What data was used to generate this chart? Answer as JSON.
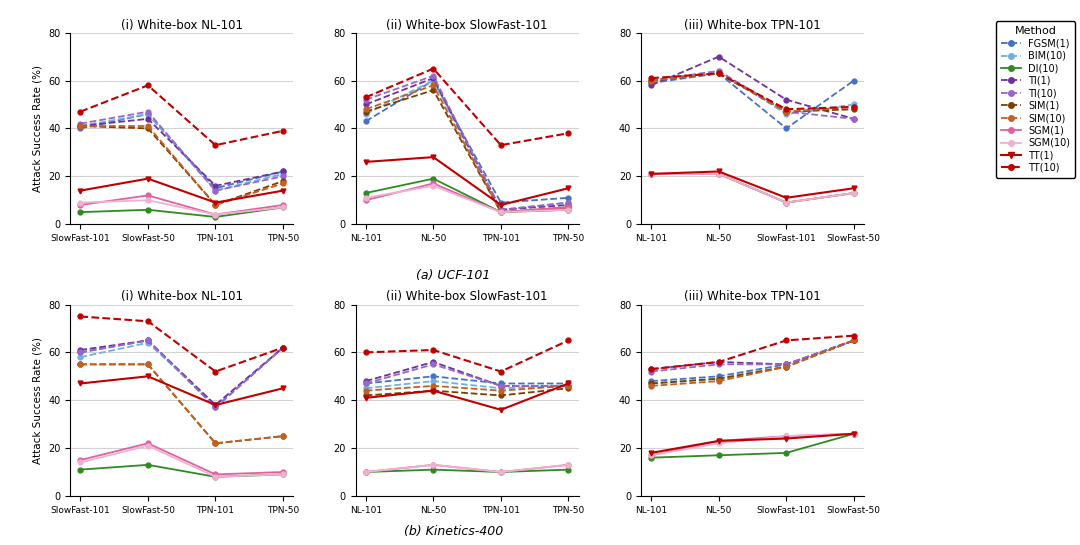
{
  "methods": [
    "FGSM(1)",
    "BIM(10)",
    "DI(10)",
    "TI(1)",
    "TI(10)",
    "SIM(1)",
    "SIM(10)",
    "SGM(1)",
    "SGM(10)",
    "TT(1)",
    "TT(10)"
  ],
  "line_styles": {
    "FGSM(1)": {
      "dash": true,
      "color": "#4472c4",
      "marker": "o"
    },
    "BIM(10)": {
      "dash": true,
      "color": "#5b9bd5",
      "marker": "o"
    },
    "DI(10)": {
      "dash": true,
      "color": "#70ad47",
      "marker": "o"
    },
    "TI(1)": {
      "dash": true,
      "color": "#7030a0",
      "marker": "o"
    },
    "TI(10)": {
      "dash": true,
      "color": "#9966cc",
      "marker": "o"
    },
    "SIM(1)": {
      "dash": true,
      "color": "#843c0c",
      "marker": "o"
    },
    "SIM(10)": {
      "dash": true,
      "color": "#c55a11",
      "marker": "o"
    },
    "SGM(1)": {
      "dash": true,
      "color": "#e060a0",
      "marker": "o"
    },
    "SGM(10)": {
      "dash": true,
      "color": "#f4a0c8",
      "marker": "o"
    },
    "TT(1)": {
      "dash": false,
      "color": "#c00000",
      "marker": "v"
    },
    "TT(10)": {
      "dash": true,
      "color": "#c00000",
      "marker": "o"
    }
  },
  "solid_methods": [
    "FGSM(1)",
    "BIM(10)",
    "DI(10)",
    "SIM(1)",
    "SIM(10)",
    "SGM(1)",
    "SGM(10)",
    "TT(1)"
  ],
  "ucf101": {
    "NL101": {
      "xticks": [
        "SlowFast-101",
        "SlowFast-50",
        "TPN-101",
        "TPN-50"
      ],
      "FGSM(1)": [
        40,
        46,
        15,
        22
      ],
      "BIM(10)": [
        41,
        46,
        14,
        21
      ],
      "DI(10)": [
        5,
        6,
        3,
        7
      ],
      "TI(1)": [
        41,
        44,
        16,
        22
      ],
      "TI(10)": [
        42,
        47,
        14,
        20
      ],
      "SIM(1)": [
        41,
        40,
        8,
        18
      ],
      "SIM(10)": [
        41,
        41,
        8,
        17
      ],
      "SGM(1)": [
        8,
        12,
        4,
        8
      ],
      "SGM(10)": [
        9,
        10,
        4,
        7
      ],
      "TT(1)": [
        14,
        19,
        9,
        14
      ],
      "TT(10)": [
        47,
        58,
        33,
        39
      ]
    },
    "SlowFast101": {
      "xticks": [
        "NL-101",
        "NL-50",
        "TPN-101",
        "TPN-50"
      ],
      "FGSM(1)": [
        43,
        60,
        9,
        11
      ],
      "BIM(10)": [
        46,
        60,
        6,
        9
      ],
      "DI(10)": [
        13,
        19,
        5,
        6
      ],
      "TI(1)": [
        50,
        61,
        6,
        8
      ],
      "TI(10)": [
        52,
        62,
        6,
        9
      ],
      "SIM(1)": [
        47,
        56,
        5,
        7
      ],
      "SIM(10)": [
        48,
        58,
        5,
        7
      ],
      "SGM(1)": [
        10,
        17,
        5,
        7
      ],
      "SGM(10)": [
        11,
        16,
        5,
        6
      ],
      "TT(1)": [
        26,
        28,
        8,
        15
      ],
      "TT(10)": [
        53,
        65,
        33,
        38
      ]
    },
    "TPN101": {
      "xticks": [
        "NL-101",
        "NL-50",
        "SlowFast-101",
        "SlowFast-50"
      ],
      "FGSM(1)": [
        59,
        63,
        40,
        60
      ],
      "BIM(10)": [
        60,
        64,
        46,
        50
      ],
      "DI(10)": [
        21,
        21,
        9,
        13
      ],
      "TI(1)": [
        58,
        70,
        52,
        44
      ],
      "TI(10)": [
        60,
        64,
        47,
        44
      ],
      "SIM(1)": [
        60,
        63,
        47,
        48
      ],
      "SIM(10)": [
        60,
        63,
        47,
        49
      ],
      "SGM(1)": [
        21,
        21,
        9,
        13
      ],
      "SGM(10)": [
        21,
        21,
        9,
        13
      ],
      "TT(1)": [
        21,
        22,
        11,
        15
      ],
      "TT(10)": [
        61,
        63,
        48,
        49
      ]
    }
  },
  "kinetics400": {
    "NL101": {
      "xticks": [
        "SlowFast-101",
        "SlowFast-50",
        "TPN-101",
        "TPN-50"
      ],
      "FGSM(1)": [
        60,
        65,
        37,
        62
      ],
      "BIM(10)": [
        58,
        64,
        38,
        62
      ],
      "DI(10)": [
        11,
        13,
        8,
        9
      ],
      "TI(1)": [
        61,
        65,
        38,
        62
      ],
      "TI(10)": [
        60,
        65,
        37,
        62
      ],
      "SIM(1)": [
        55,
        55,
        22,
        25
      ],
      "SIM(10)": [
        55,
        55,
        22,
        25
      ],
      "SGM(1)": [
        15,
        22,
        9,
        10
      ],
      "SGM(10)": [
        14,
        21,
        8,
        9
      ],
      "TT(1)": [
        47,
        50,
        38,
        45
      ],
      "TT(10)": [
        75,
        73,
        52,
        62
      ]
    },
    "SlowFast101": {
      "xticks": [
        "NL-101",
        "NL-50",
        "TPN-101",
        "TPN-50"
      ],
      "FGSM(1)": [
        47,
        50,
        47,
        47
      ],
      "BIM(10)": [
        45,
        48,
        45,
        46
      ],
      "DI(10)": [
        10,
        11,
        10,
        11
      ],
      "TI(1)": [
        48,
        56,
        46,
        46
      ],
      "TI(10)": [
        47,
        55,
        46,
        46
      ],
      "SIM(1)": [
        42,
        44,
        42,
        45
      ],
      "SIM(10)": [
        44,
        46,
        44,
        46
      ],
      "SGM(1)": [
        10,
        13,
        10,
        13
      ],
      "SGM(10)": [
        10,
        13,
        10,
        13
      ],
      "TT(1)": [
        41,
        44,
        36,
        47
      ],
      "TT(10)": [
        60,
        61,
        52,
        65
      ]
    },
    "TPN101": {
      "xticks": [
        "NL-101",
        "NL-50",
        "SlowFast-101",
        "SlowFast-50"
      ],
      "FGSM(1)": [
        48,
        50,
        55,
        65
      ],
      "BIM(10)": [
        47,
        49,
        54,
        65
      ],
      "DI(10)": [
        16,
        17,
        18,
        26
      ],
      "TI(1)": [
        53,
        56,
        55,
        65
      ],
      "TI(10)": [
        52,
        55,
        55,
        65
      ],
      "SIM(1)": [
        47,
        49,
        54,
        65
      ],
      "SIM(10)": [
        46,
        48,
        54,
        65
      ],
      "SGM(1)": [
        17,
        23,
        25,
        26
      ],
      "SGM(10)": [
        17,
        22,
        25,
        26
      ],
      "TT(1)": [
        18,
        23,
        24,
        26
      ],
      "TT(10)": [
        53,
        56,
        65,
        67
      ]
    }
  },
  "row_labels": [
    "(a) UCF-101",
    "(b) Kinetics-400"
  ]
}
